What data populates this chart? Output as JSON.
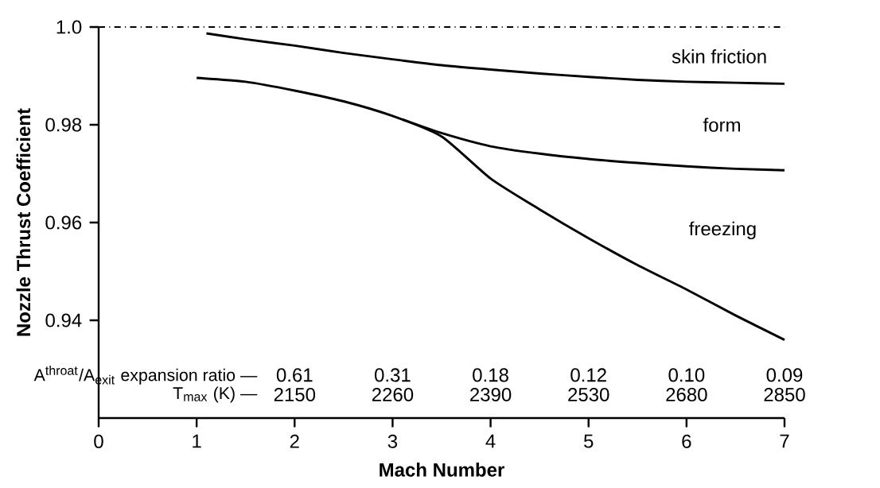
{
  "chart_data": {
    "type": "line",
    "xlabel": "Mach Number",
    "ylabel": "Nozzle Thrust Coefficient",
    "xlim": [
      0,
      7
    ],
    "ylim": [
      0.92,
      1.0
    ],
    "xticks": [
      0,
      1,
      2,
      3,
      4,
      5,
      6,
      7
    ],
    "yticks": [
      0.94,
      0.96,
      0.98,
      {
        "value": 1.0,
        "label": "1.0"
      }
    ],
    "grid": false,
    "marker": "none",
    "line_style": "solid",
    "series": [
      {
        "color": "#000000",
        "x": [
          1.1,
          1.5,
          2,
          2.5,
          3,
          3.5,
          4,
          4.5,
          5,
          5.5,
          6,
          6.5,
          7
        ],
        "values": [
          0.9987,
          0.9975,
          0.9962,
          0.9947,
          0.9934,
          0.9922,
          0.9913,
          0.9905,
          0.9898,
          0.9892,
          0.9888,
          0.9886,
          0.9884
        ]
      },
      {
        "color": "#000000",
        "x": [
          3.1,
          3.5,
          4,
          4.5,
          5,
          5.5,
          6,
          6.5,
          7
        ],
        "values": [
          0.9811,
          0.9783,
          0.9756,
          0.9741,
          0.973,
          0.9722,
          0.9715,
          0.971,
          0.9707
        ]
      },
      {
        "color": "#000000",
        "x": [
          1.0,
          1.5,
          2,
          2.5,
          3,
          3.5,
          4,
          4.5,
          5,
          5.5,
          6,
          6.5,
          7
        ],
        "values": [
          0.9896,
          0.9888,
          0.987,
          0.9848,
          0.9818,
          0.9776,
          0.969,
          0.9627,
          0.9568,
          0.9513,
          0.9463,
          0.941,
          0.936
        ]
      }
    ],
    "ref_lines": [
      {
        "axis": "y",
        "value": 1.0,
        "line_style": "dashdot",
        "color": "#000000"
      }
    ],
    "annotations": [
      "skin friction",
      "form",
      "freezing",
      "A$^{throat}$/A$_{exit}$ expansion ratio —",
      "T$_{max}$ (K) —",
      "0.61",
      "0.31",
      "0.18",
      "0.12",
      "0.10",
      "0.09",
      "2150",
      "2260",
      "2390",
      "2530",
      "2680",
      "2850"
    ]
  }
}
